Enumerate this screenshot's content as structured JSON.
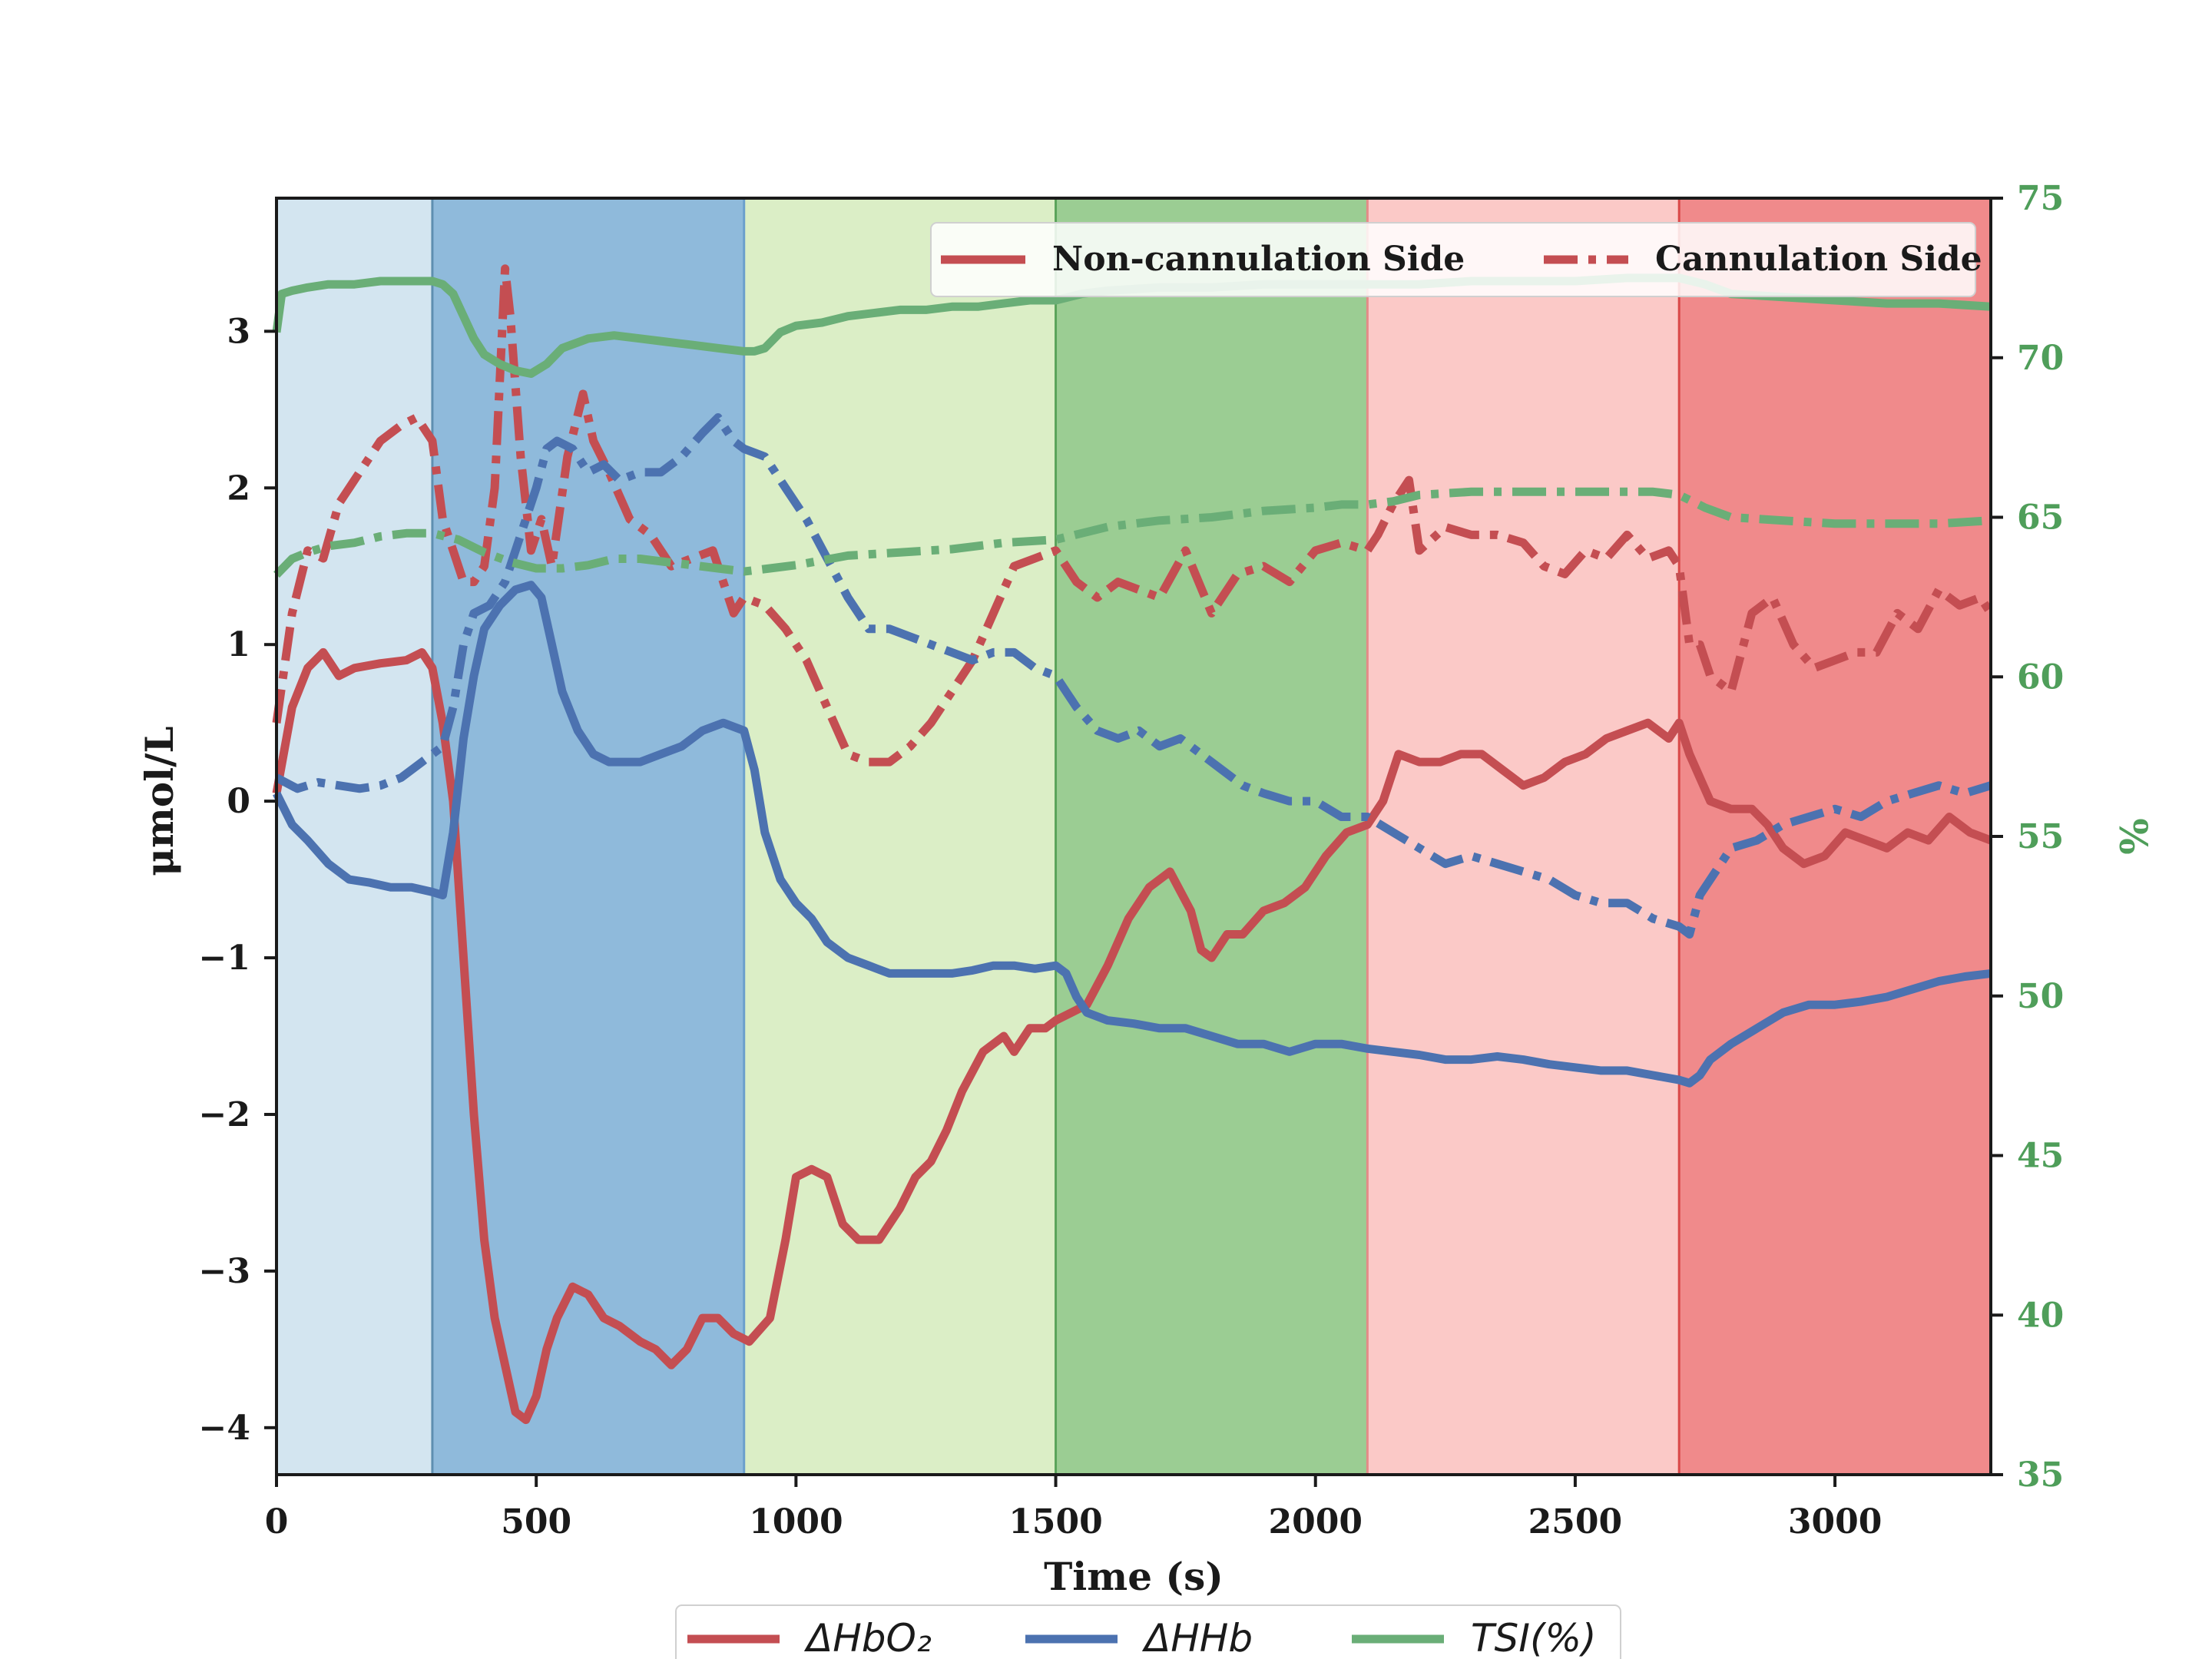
{
  "chart_data": {
    "type": "line",
    "xlabel": "Time (s)",
    "ylabel": "μmol/L",
    "y2label": "%",
    "xlim": [
      0,
      3300
    ],
    "ylim": [
      -4.3,
      3.85
    ],
    "y2lim": [
      35,
      75
    ],
    "xticks": [
      "0",
      "500",
      "1000",
      "1500",
      "2000",
      "2500",
      "3000"
    ],
    "yticks": [
      "3",
      "2",
      "1",
      "0",
      "−1",
      "−2",
      "−3",
      "−4"
    ],
    "y2ticks": [
      "75",
      "70",
      "65",
      "60",
      "55",
      "50",
      "45",
      "40",
      "35"
    ],
    "grid": false,
    "phases": [
      {
        "x": [
          0,
          300
        ],
        "color": "#d3e5f0"
      },
      {
        "x": [
          300,
          900
        ],
        "color": "#8fbadb"
      },
      {
        "x": [
          900,
          1500
        ],
        "color": "#dbeec6"
      },
      {
        "x": [
          1500,
          2100
        ],
        "color": "#9bcd93"
      },
      {
        "x": [
          2100,
          2700
        ],
        "color": "#fbc9c7"
      },
      {
        "x": [
          2700,
          3300
        ],
        "color": "#f08a8b"
      }
    ],
    "phase_boundaries": [
      {
        "x": 300,
        "color": "#5f8fb0"
      },
      {
        "x": 900,
        "color": "#6b9fcc"
      },
      {
        "x": 1500,
        "color": "#5aa35a"
      },
      {
        "x": 2100,
        "color": "#e48b88"
      },
      {
        "x": 2700,
        "color": "#d94848"
      }
    ],
    "legend_sides": {
      "placement": "top-right",
      "entries": [
        {
          "label": "Non-cannulation Side",
          "style": "solid"
        },
        {
          "label": "Cannulation Side",
          "style": "dashdot"
        }
      ]
    },
    "legend_series": {
      "placement": "bottom-center",
      "entries": [
        {
          "label": "ΔHbO₂",
          "color": "#c44e52"
        },
        {
          "label": "ΔHHb",
          "color": "#4c72b0"
        },
        {
          "label": "TSI(%)",
          "color": "#6aae77"
        }
      ]
    },
    "series": [
      {
        "name": "ΔHbO₂",
        "side": "Non-cannulation Side",
        "axis": "left",
        "color": "#c44e52",
        "style": "solid",
        "x": [
          0,
          30,
          60,
          90,
          120,
          150,
          200,
          250,
          280,
          300,
          320,
          340,
          360,
          380,
          400,
          420,
          440,
          460,
          480,
          500,
          520,
          540,
          570,
          600,
          630,
          660,
          700,
          730,
          760,
          790,
          820,
          850,
          880,
          910,
          950,
          980,
          1000,
          1030,
          1060,
          1090,
          1120,
          1160,
          1200,
          1230,
          1260,
          1290,
          1320,
          1360,
          1400,
          1420,
          1450,
          1480,
          1500,
          1530,
          1560,
          1600,
          1640,
          1680,
          1720,
          1760,
          1780,
          1800,
          1830,
          1860,
          1900,
          1940,
          1980,
          2020,
          2060,
          2100,
          2130,
          2160,
          2200,
          2240,
          2280,
          2320,
          2360,
          2400,
          2440,
          2480,
          2520,
          2560,
          2600,
          2640,
          2680,
          2700,
          2720,
          2740,
          2760,
          2800,
          2840,
          2870,
          2900,
          2940,
          2980,
          3020,
          3060,
          3100,
          3140,
          3180,
          3220,
          3260,
          3300
        ],
        "y": [
          0.05,
          0.6,
          0.85,
          0.95,
          0.8,
          0.85,
          0.88,
          0.9,
          0.95,
          0.85,
          0.5,
          0.0,
          -1.0,
          -2.0,
          -2.8,
          -3.3,
          -3.6,
          -3.9,
          -3.95,
          -3.8,
          -3.5,
          -3.3,
          -3.1,
          -3.15,
          -3.3,
          -3.35,
          -3.45,
          -3.5,
          -3.6,
          -3.5,
          -3.3,
          -3.3,
          -3.4,
          -3.45,
          -3.3,
          -2.8,
          -2.4,
          -2.35,
          -2.4,
          -2.7,
          -2.8,
          -2.8,
          -2.6,
          -2.4,
          -2.3,
          -2.1,
          -1.85,
          -1.6,
          -1.5,
          -1.6,
          -1.45,
          -1.45,
          -1.4,
          -1.35,
          -1.3,
          -1.05,
          -0.75,
          -0.55,
          -0.45,
          -0.7,
          -0.95,
          -1.0,
          -0.85,
          -0.85,
          -0.7,
          -0.65,
          -0.55,
          -0.35,
          -0.2,
          -0.15,
          0.0,
          0.3,
          0.25,
          0.25,
          0.3,
          0.3,
          0.2,
          0.1,
          0.15,
          0.25,
          0.3,
          0.4,
          0.45,
          0.5,
          0.4,
          0.5,
          0.3,
          0.15,
          0.0,
          -0.05,
          -0.05,
          -0.15,
          -0.3,
          -0.4,
          -0.35,
          -0.2,
          -0.25,
          -0.3,
          -0.2,
          -0.25,
          -0.1,
          -0.2,
          -0.25
        ]
      },
      {
        "name": "ΔHbO₂",
        "side": "Cannulation Side",
        "axis": "left",
        "color": "#c44e52",
        "style": "dashdot",
        "x": [
          0,
          30,
          60,
          90,
          120,
          160,
          200,
          240,
          270,
          300,
          320,
          340,
          360,
          380,
          400,
          420,
          440,
          450,
          470,
          490,
          510,
          530,
          560,
          590,
          610,
          640,
          680,
          720,
          760,
          800,
          840,
          880,
          900,
          940,
          980,
          1020,
          1060,
          1100,
          1140,
          1180,
          1220,
          1260,
          1300,
          1340,
          1380,
          1420,
          1460,
          1500,
          1540,
          1580,
          1620,
          1660,
          1700,
          1750,
          1800,
          1850,
          1900,
          1950,
          2000,
          2050,
          2100,
          2120,
          2150,
          2180,
          2200,
          2250,
          2300,
          2350,
          2400,
          2440,
          2480,
          2520,
          2560,
          2600,
          2640,
          2680,
          2700,
          2720,
          2740,
          2760,
          2800,
          2840,
          2880,
          2920,
          2960,
          3000,
          3040,
          3080,
          3120,
          3160,
          3200,
          3240,
          3280,
          3300
        ],
        "y": [
          0.5,
          1.2,
          1.6,
          1.55,
          1.9,
          2.1,
          2.3,
          2.4,
          2.45,
          2.3,
          1.8,
          1.6,
          1.4,
          1.4,
          1.5,
          2.0,
          3.4,
          3.1,
          2.2,
          1.6,
          1.8,
          1.5,
          2.2,
          2.6,
          2.3,
          2.1,
          1.8,
          1.7,
          1.5,
          1.55,
          1.6,
          1.2,
          1.3,
          1.25,
          1.1,
          0.9,
          0.6,
          0.3,
          0.25,
          0.25,
          0.35,
          0.5,
          0.7,
          0.9,
          1.2,
          1.5,
          1.55,
          1.6,
          1.4,
          1.3,
          1.4,
          1.35,
          1.3,
          1.6,
          1.2,
          1.45,
          1.5,
          1.4,
          1.6,
          1.65,
          1.6,
          1.7,
          1.9,
          2.05,
          1.6,
          1.75,
          1.7,
          1.7,
          1.65,
          1.5,
          1.45,
          1.6,
          1.55,
          1.7,
          1.55,
          1.6,
          1.5,
          1.0,
          1.0,
          0.8,
          0.7,
          1.2,
          1.3,
          1.0,
          0.85,
          0.9,
          0.95,
          0.95,
          1.2,
          1.1,
          1.35,
          1.25,
          1.3,
          1.2
        ]
      },
      {
        "name": "ΔHHb",
        "side": "Non-cannulation Side",
        "axis": "left",
        "color": "#4c72b0",
        "style": "solid",
        "x": [
          0,
          30,
          60,
          100,
          140,
          180,
          220,
          260,
          300,
          320,
          340,
          360,
          380,
          400,
          430,
          460,
          490,
          510,
          530,
          550,
          580,
          610,
          640,
          670,
          700,
          740,
          780,
          820,
          860,
          900,
          920,
          940,
          970,
          1000,
          1030,
          1060,
          1100,
          1140,
          1180,
          1220,
          1260,
          1300,
          1340,
          1380,
          1420,
          1460,
          1500,
          1520,
          1540,
          1560,
          1600,
          1650,
          1700,
          1750,
          1800,
          1850,
          1900,
          1950,
          2000,
          2050,
          2100,
          2150,
          2200,
          2250,
          2300,
          2350,
          2400,
          2450,
          2500,
          2550,
          2600,
          2650,
          2700,
          2720,
          2740,
          2760,
          2800,
          2850,
          2900,
          2950,
          3000,
          3050,
          3100,
          3150,
          3200,
          3250,
          3300
        ],
        "y": [
          0.05,
          -0.15,
          -0.25,
          -0.4,
          -0.5,
          -0.52,
          -0.55,
          -0.55,
          -0.58,
          -0.6,
          -0.2,
          0.4,
          0.8,
          1.1,
          1.25,
          1.35,
          1.38,
          1.3,
          1.0,
          0.7,
          0.45,
          0.3,
          0.25,
          0.25,
          0.25,
          0.3,
          0.35,
          0.45,
          0.5,
          0.45,
          0.2,
          -0.2,
          -0.5,
          -0.65,
          -0.75,
          -0.9,
          -1.0,
          -1.05,
          -1.1,
          -1.1,
          -1.1,
          -1.1,
          -1.08,
          -1.05,
          -1.05,
          -1.07,
          -1.05,
          -1.1,
          -1.25,
          -1.35,
          -1.4,
          -1.42,
          -1.45,
          -1.45,
          -1.5,
          -1.55,
          -1.55,
          -1.6,
          -1.55,
          -1.55,
          -1.58,
          -1.6,
          -1.62,
          -1.65,
          -1.65,
          -1.63,
          -1.65,
          -1.68,
          -1.7,
          -1.72,
          -1.72,
          -1.75,
          -1.78,
          -1.8,
          -1.75,
          -1.65,
          -1.55,
          -1.45,
          -1.35,
          -1.3,
          -1.3,
          -1.28,
          -1.25,
          -1.2,
          -1.15,
          -1.12,
          -1.1
        ]
      },
      {
        "name": "ΔHHb",
        "side": "Cannulation Side",
        "axis": "left",
        "color": "#4c72b0",
        "style": "dashdot",
        "x": [
          0,
          40,
          80,
          120,
          160,
          200,
          240,
          280,
          300,
          320,
          340,
          360,
          380,
          410,
          440,
          470,
          500,
          520,
          540,
          570,
          600,
          630,
          660,
          700,
          740,
          780,
          820,
          850,
          880,
          900,
          940,
          980,
          1020,
          1060,
          1100,
          1140,
          1180,
          1220,
          1260,
          1300,
          1340,
          1380,
          1420,
          1460,
          1500,
          1540,
          1580,
          1620,
          1660,
          1700,
          1740,
          1780,
          1820,
          1860,
          1900,
          1950,
          2000,
          2050,
          2100,
          2150,
          2200,
          2250,
          2300,
          2350,
          2400,
          2450,
          2500,
          2550,
          2600,
          2650,
          2700,
          2720,
          2740,
          2760,
          2800,
          2850,
          2900,
          2950,
          3000,
          3050,
          3100,
          3150,
          3200,
          3250,
          3300
        ],
        "y": [
          0.15,
          0.08,
          0.12,
          0.1,
          0.08,
          0.1,
          0.15,
          0.25,
          0.3,
          0.35,
          0.6,
          1.0,
          1.2,
          1.25,
          1.4,
          1.7,
          2.0,
          2.25,
          2.3,
          2.25,
          2.1,
          2.15,
          2.05,
          2.1,
          2.1,
          2.2,
          2.35,
          2.45,
          2.3,
          2.25,
          2.2,
          2.0,
          1.8,
          1.55,
          1.3,
          1.1,
          1.1,
          1.05,
          1.0,
          0.95,
          0.9,
          0.95,
          0.95,
          0.85,
          0.8,
          0.6,
          0.45,
          0.4,
          0.45,
          0.35,
          0.4,
          0.3,
          0.2,
          0.1,
          0.05,
          0.0,
          0.0,
          -0.1,
          -0.1,
          -0.2,
          -0.3,
          -0.4,
          -0.35,
          -0.4,
          -0.45,
          -0.5,
          -0.6,
          -0.65,
          -0.65,
          -0.75,
          -0.8,
          -0.85,
          -0.6,
          -0.5,
          -0.3,
          -0.25,
          -0.15,
          -0.1,
          -0.05,
          -0.1,
          0.0,
          0.05,
          0.1,
          0.05,
          0.1
        ]
      },
      {
        "name": "TSI(%)",
        "side": "Non-cannulation Side",
        "axis": "right",
        "color": "#6aae77",
        "style": "solid",
        "x": [
          0,
          10,
          30,
          60,
          100,
          150,
          200,
          250,
          300,
          320,
          340,
          360,
          380,
          400,
          430,
          460,
          490,
          520,
          550,
          600,
          650,
          700,
          750,
          800,
          850,
          900,
          920,
          940,
          970,
          1000,
          1050,
          1100,
          1150,
          1200,
          1250,
          1300,
          1350,
          1400,
          1450,
          1500,
          1550,
          1600,
          1700,
          1800,
          1900,
          2000,
          2100,
          2200,
          2300,
          2400,
          2500,
          2600,
          2650,
          2700,
          2750,
          2800,
          2900,
          3000,
          3100,
          3200,
          3300
        ],
        "y": [
          70.8,
          72.0,
          72.1,
          72.2,
          72.3,
          72.3,
          72.4,
          72.4,
          72.4,
          72.3,
          72.0,
          71.3,
          70.6,
          70.1,
          69.8,
          69.6,
          69.5,
          69.8,
          70.3,
          70.6,
          70.7,
          70.6,
          70.5,
          70.4,
          70.3,
          70.2,
          70.2,
          70.3,
          70.8,
          71.0,
          71.1,
          71.3,
          71.4,
          71.5,
          71.5,
          71.6,
          71.6,
          71.7,
          71.8,
          71.8,
          72.0,
          72.1,
          72.2,
          72.2,
          72.3,
          72.3,
          72.3,
          72.3,
          72.4,
          72.4,
          72.4,
          72.5,
          72.5,
          72.5,
          72.3,
          72.0,
          71.9,
          71.8,
          71.7,
          71.7,
          71.6
        ]
      },
      {
        "name": "TSI(%)",
        "side": "Cannulation Side",
        "axis": "right",
        "color": "#6aae77",
        "style": "dashdot",
        "x": [
          0,
          30,
          60,
          100,
          150,
          200,
          250,
          300,
          350,
          400,
          450,
          500,
          550,
          600,
          650,
          700,
          750,
          800,
          850,
          900,
          950,
          1000,
          1100,
          1200,
          1300,
          1400,
          1500,
          1550,
          1600,
          1700,
          1800,
          1900,
          2000,
          2050,
          2100,
          2150,
          2200,
          2300,
          2400,
          2500,
          2600,
          2650,
          2700,
          2750,
          2800,
          2900,
          3000,
          3100,
          3200,
          3300
        ],
        "y": [
          63.2,
          63.7,
          63.9,
          64.1,
          64.2,
          64.4,
          64.5,
          64.5,
          64.3,
          63.9,
          63.6,
          63.4,
          63.4,
          63.5,
          63.7,
          63.7,
          63.6,
          63.5,
          63.4,
          63.3,
          63.4,
          63.5,
          63.8,
          63.9,
          64.0,
          64.2,
          64.3,
          64.5,
          64.7,
          64.9,
          65.0,
          65.2,
          65.3,
          65.4,
          65.4,
          65.5,
          65.7,
          65.8,
          65.8,
          65.8,
          65.8,
          65.8,
          65.7,
          65.3,
          65.0,
          64.9,
          64.8,
          64.8,
          64.8,
          64.9
        ]
      }
    ]
  }
}
